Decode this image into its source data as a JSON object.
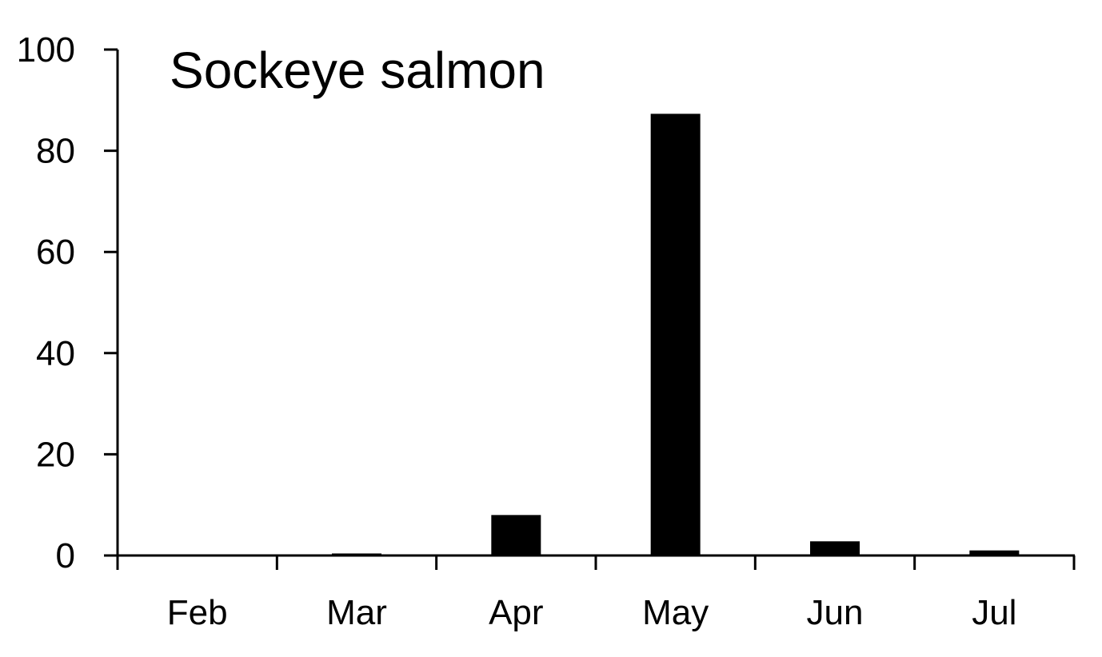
{
  "chart_data": {
    "type": "bar",
    "title": "Sockeye salmon",
    "xlabel": "",
    "ylabel": "",
    "categories": [
      "Feb",
      "Mar",
      "Apr",
      "May",
      "Jun",
      "Jul"
    ],
    "values": [
      0,
      0.4,
      8,
      87.3,
      2.8,
      1
    ],
    "ylim": [
      0,
      100
    ],
    "yticks": [
      0,
      20,
      40,
      60,
      80,
      100
    ],
    "grid": false,
    "colors": {
      "bar": "#000000",
      "axis": "#000000",
      "text": "#000000",
      "background": "#ffffff"
    }
  }
}
